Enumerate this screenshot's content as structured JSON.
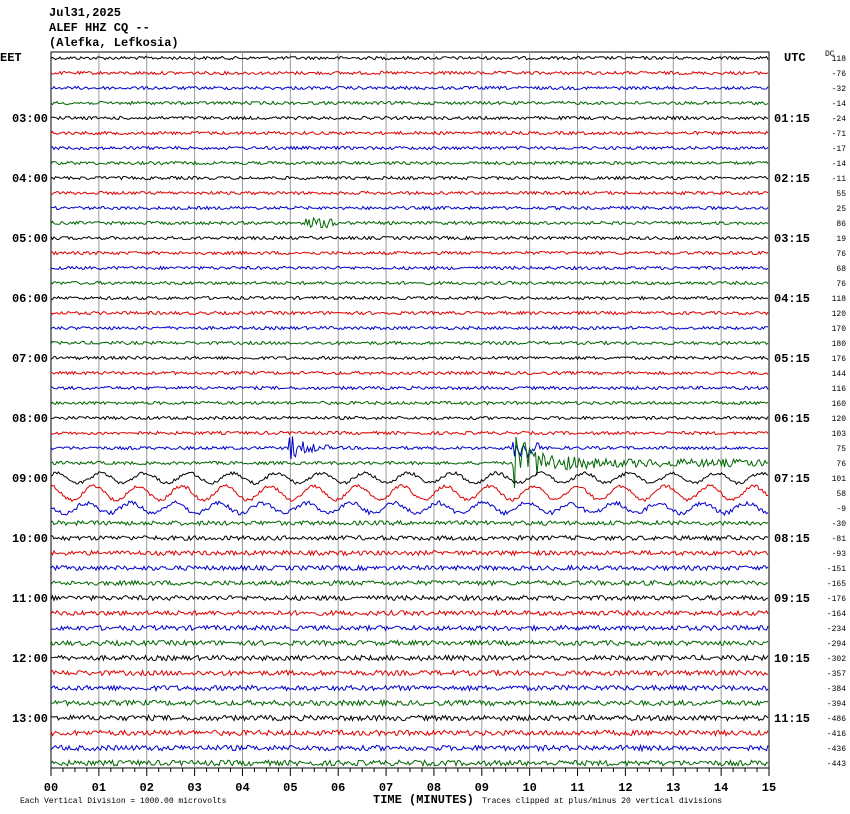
{
  "header": {
    "date": "Jul31,2025",
    "station": "ALEF HHZ CQ --",
    "location": "(Alefka, Lefkosia)"
  },
  "left_zone": "EET",
  "right_zone": "UTC",
  "dc_label": "DC",
  "left_times": [
    "03:00",
    "04:00",
    "05:00",
    "06:00",
    "07:00",
    "08:00",
    "09:00",
    "10:00",
    "11:00",
    "12:00",
    "13:00"
  ],
  "right_times": [
    "01:15",
    "02:15",
    "03:15",
    "04:15",
    "05:15",
    "06:15",
    "07:15",
    "08:15",
    "09:15",
    "10:15",
    "11:15"
  ],
  "dc_offsets": [
    118,
    -76,
    -32,
    -14,
    -24,
    -71,
    -17,
    -14,
    -11,
    55,
    25,
    86,
    19,
    76,
    68,
    76,
    118,
    120,
    170,
    180,
    176,
    144,
    116,
    160,
    120,
    103,
    75,
    76,
    101,
    58,
    -9,
    -30,
    -81,
    -93,
    -151,
    -165,
    -176,
    -164,
    -234,
    -294,
    -302,
    -357,
    -384,
    -394,
    -486,
    -416,
    -436,
    -443
  ],
  "x_ticks": [
    "00",
    "01",
    "02",
    "03",
    "04",
    "05",
    "06",
    "07",
    "08",
    "09",
    "10",
    "11",
    "12",
    "13",
    "14",
    "15"
  ],
  "footer": {
    "scale": "Each Vertical Division = 1000.00 microvolts",
    "axis": "TIME (MINUTES)",
    "clip": "Traces clipped at plus/minus 20 vertical divisions"
  }
}
